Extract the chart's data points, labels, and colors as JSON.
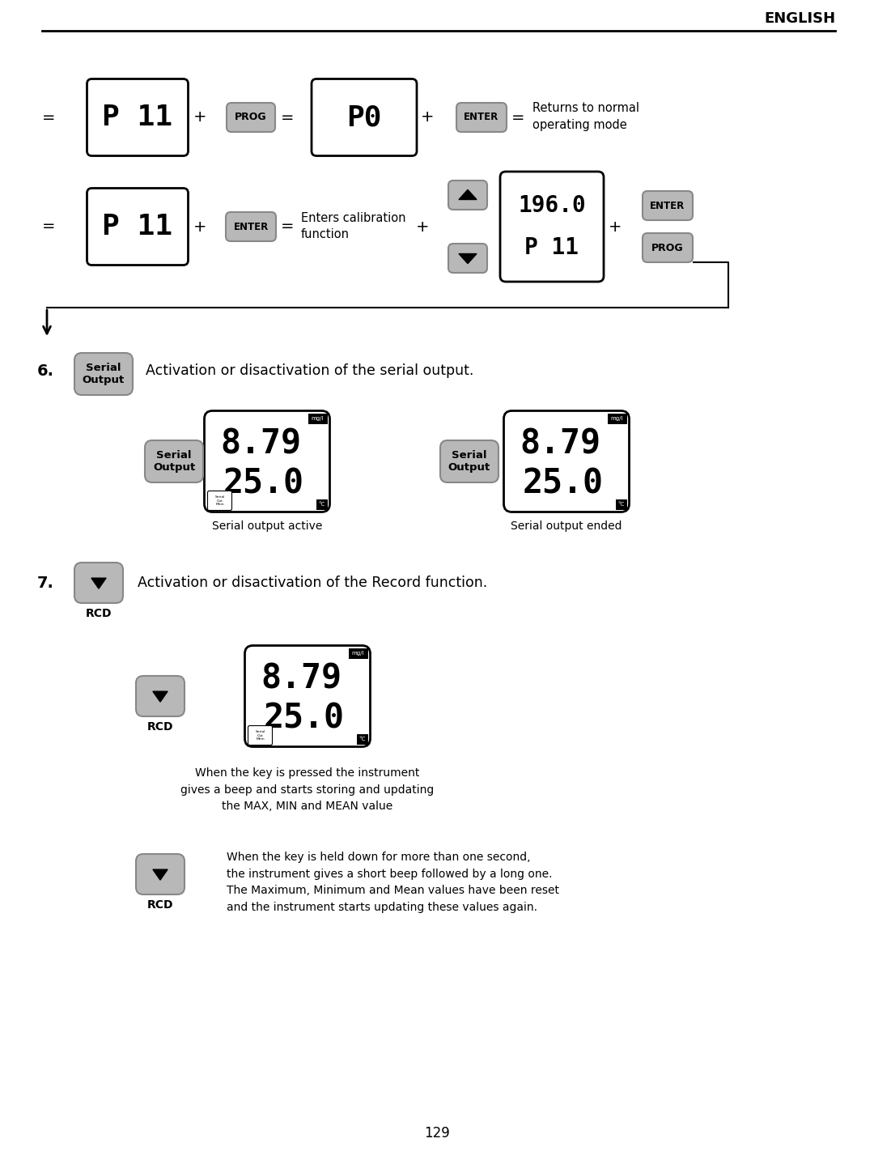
{
  "title": "ENGLISH",
  "page_number": "129",
  "bg": "#ffffff",
  "gray": "#b8b8b8",
  "gray_dark": "#888888",
  "black": "#000000",
  "white": "#ffffff",
  "tag_bg": "#000000",
  "section6_label": "6.",
  "section6_text": "Activation or disactivation of the serial output.",
  "section7_label": "7.",
  "section7_text": "Activation or disactivation of the Record function.",
  "serial_active_label": "Serial output active",
  "serial_ended_label": "Serial output ended",
  "rcd_text1": "When the key is pressed the instrument\ngives a beep and starts storing and updating\nthe MAX, MIN and MEAN value",
  "rcd_text2": "When the key is held down for more than one second,\nthe instrument gives a short beep followed by a long one.\nThe Maximum, Minimum and Mean values have been reset\nand the instrument starts updating these values again.",
  "returns_text": "Returns to normal\noperating mode",
  "enters_text": "Enters calibration\nfunction"
}
